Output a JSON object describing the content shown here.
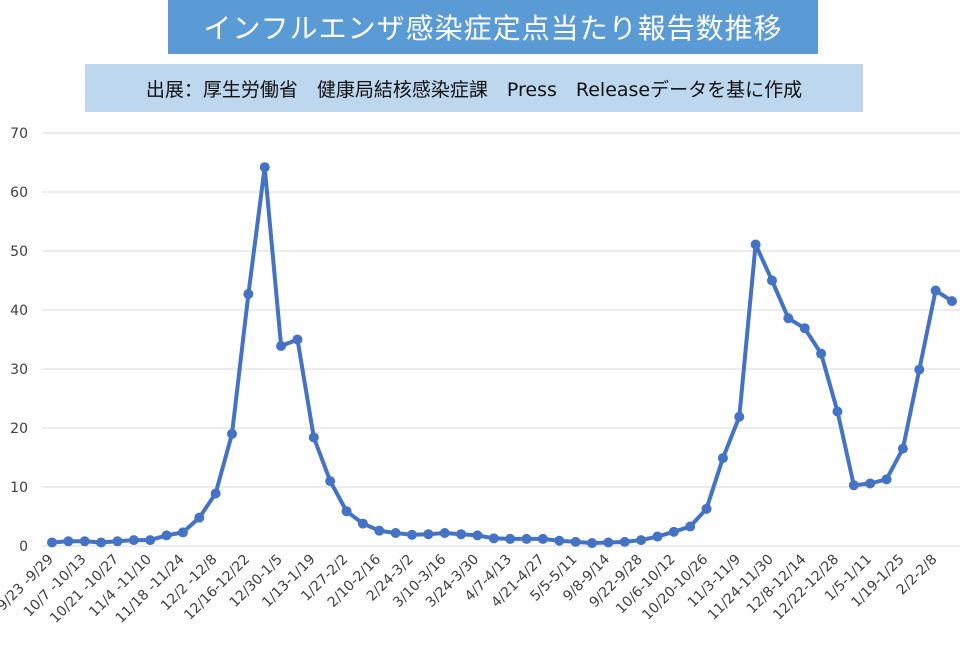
{
  "title": "インフルエンザ感染症定点当たり報告数推移",
  "source": "出展：厚生労働省　健康局結核感染症課　Press　Releaseデータを基に作成",
  "colors": {
    "line": "#4472c4",
    "title_bg": "#5b9bd5",
    "source_bg": "#bdd7ee",
    "grid": "#d9d9d9"
  },
  "chart_data": {
    "type": "line",
    "title": "",
    "xlabel": "",
    "ylabel": "",
    "ylim": [
      0,
      70
    ],
    "yticks": [
      0,
      10,
      20,
      30,
      40,
      50,
      60,
      70
    ],
    "grid": true,
    "legend": "none",
    "x_tick_labels": [
      "9/23 -9/29",
      "10/7 -10/13",
      "10/21 -10/27",
      "11/4 -11/10",
      "11/18 -11/24",
      "12/2 -12/8",
      "12/16-12/22",
      "12/30-1/5",
      "1/13-1/19",
      "1/27-2/2",
      "2/10-2/16",
      "2/24-3/2",
      "3/10-3/16",
      "3/24-3/30",
      "4/7-4/13",
      "4/21-4/27",
      "5/5-5/11",
      "9/8-9/14",
      "9/22-9/28",
      "10/6-10/12",
      "10/20-10/26",
      "11/3-11/9",
      "11/24-11/30",
      "12/8-12/14",
      "12/22-12/28",
      "1/5-1/11",
      "1/19-1/25",
      "2/2-2/8"
    ],
    "series": [
      {
        "values": [
          0.6,
          0.8,
          0.8,
          0.6,
          0.8,
          1.0,
          1.0,
          1.8,
          2.3,
          4.8,
          8.9,
          19.0,
          42.7,
          64.2,
          33.9,
          35.0,
          18.4,
          11.0,
          5.9,
          3.8,
          2.6,
          2.2,
          1.9,
          2.0,
          2.2,
          2.0,
          1.8,
          1.3,
          1.2,
          1.2,
          1.2,
          0.9,
          0.7,
          0.5,
          0.6,
          0.7,
          1.0,
          1.6,
          2.4,
          3.3,
          6.3,
          14.9,
          21.9,
          51.1,
          45.0,
          38.6,
          36.9,
          32.6,
          22.8,
          10.3,
          10.6,
          11.3,
          16.5,
          29.9,
          43.3,
          41.5
        ]
      }
    ]
  }
}
